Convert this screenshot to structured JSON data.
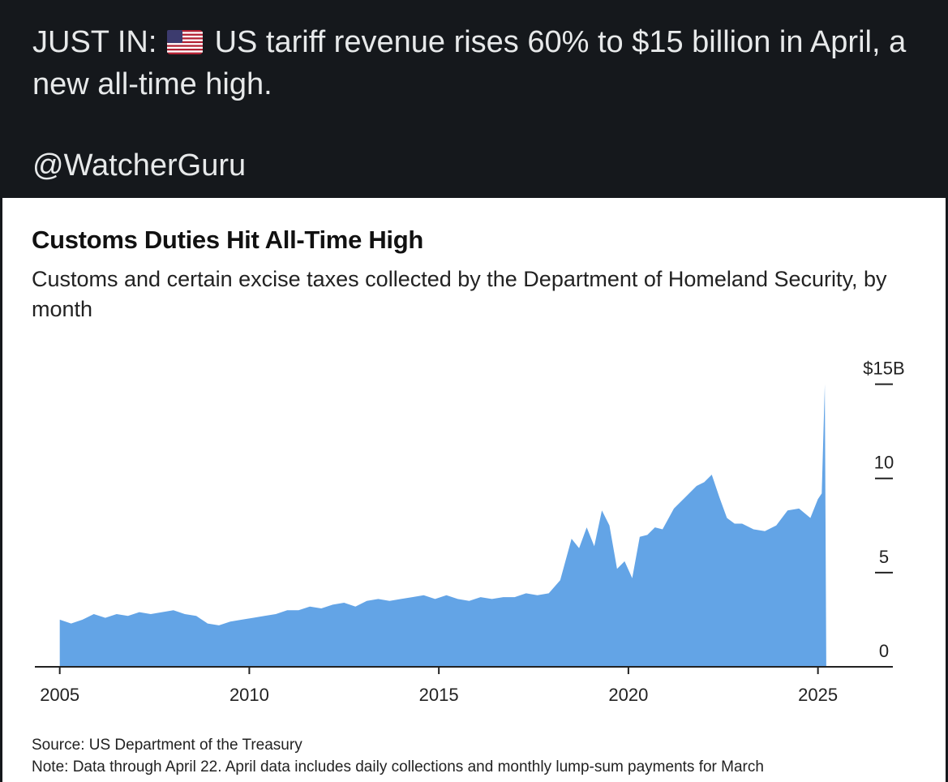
{
  "tweet": {
    "headline_prefix": "JUST IN:",
    "headline_text": "US tariff revenue rises 60% to $15 billion in April, a new all-time high.",
    "flag_icon": "us-flag-emoji",
    "handle": "@WatcherGuru"
  },
  "colors": {
    "tweet_background": "#15181c",
    "tweet_text": "#e7e9ea",
    "area_fill": "#63a4e6",
    "axis": "#222222"
  },
  "chart_data": {
    "type": "area",
    "title": "Customs Duties Hit All-Time High",
    "subtitle": "Customs and certain excise taxes collected by the Department of Homeland Security, by month",
    "x_unit": "year",
    "xlim": [
      2004.9,
      2025.35
    ],
    "ylim": [
      0,
      15.5
    ],
    "x_ticks": [
      2005,
      2010,
      2015,
      2020,
      2025
    ],
    "x_tick_labels": [
      "2005",
      "2010",
      "2015",
      "2020",
      "2025"
    ],
    "y_ticks": [
      0,
      5,
      10,
      15
    ],
    "y_tick_labels": [
      "0",
      "5",
      "10",
      "$15B"
    ],
    "y_axis_side": "right",
    "grid": false,
    "series": [
      {
        "x": [
          2005.0,
          2005.3,
          2005.6,
          2005.9,
          2006.2,
          2006.5,
          2006.8,
          2007.1,
          2007.4,
          2007.7,
          2008.0,
          2008.3,
          2008.6,
          2008.9,
          2009.2,
          2009.5,
          2009.8,
          2010.1,
          2010.4,
          2010.7,
          2011.0,
          2011.3,
          2011.6,
          2011.9,
          2012.2,
          2012.5,
          2012.8,
          2013.1,
          2013.4,
          2013.7,
          2014.0,
          2014.3,
          2014.6,
          2014.9,
          2015.2,
          2015.5,
          2015.8,
          2016.1,
          2016.4,
          2016.7,
          2017.0,
          2017.3,
          2017.6,
          2017.9,
          2018.2,
          2018.5,
          2018.7,
          2018.9,
          2019.1,
          2019.3,
          2019.5,
          2019.7,
          2019.9,
          2020.1,
          2020.3,
          2020.5,
          2020.7,
          2020.9,
          2021.2,
          2021.5,
          2021.8,
          2022.0,
          2022.2,
          2022.4,
          2022.6,
          2022.8,
          2023.0,
          2023.3,
          2023.6,
          2023.9,
          2024.2,
          2024.5,
          2024.8,
          2025.0,
          2025.1,
          2025.18,
          2025.22
        ],
        "values": [
          2.5,
          2.3,
          2.5,
          2.8,
          2.6,
          2.8,
          2.7,
          2.9,
          2.8,
          2.9,
          3.0,
          2.8,
          2.7,
          2.3,
          2.2,
          2.4,
          2.5,
          2.6,
          2.7,
          2.8,
          3.0,
          3.0,
          3.2,
          3.1,
          3.3,
          3.4,
          3.2,
          3.5,
          3.6,
          3.5,
          3.6,
          3.7,
          3.8,
          3.6,
          3.8,
          3.6,
          3.5,
          3.7,
          3.6,
          3.7,
          3.7,
          3.9,
          3.8,
          3.9,
          4.6,
          6.8,
          6.3,
          7.4,
          6.4,
          8.3,
          7.5,
          5.2,
          5.6,
          4.7,
          6.9,
          7.0,
          7.4,
          7.3,
          8.4,
          9.0,
          9.6,
          9.8,
          10.2,
          9.0,
          7.9,
          7.6,
          7.6,
          7.3,
          7.2,
          7.5,
          8.3,
          8.4,
          7.9,
          8.9,
          9.2,
          15.0,
          0.0
        ]
      }
    ],
    "source": "Source: US Department of the Treasury",
    "note": "Note: Data through April 22. April data includes daily collections and monthly lump-sum payments for March"
  }
}
